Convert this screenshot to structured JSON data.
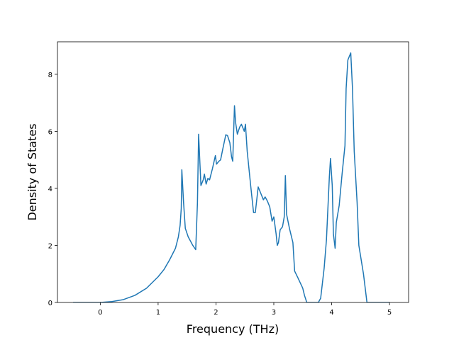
{
  "chart_data": {
    "type": "line",
    "x_label": "Frequency (THz)",
    "y_label": "Density of States",
    "xlim": [
      -0.74,
      5.33
    ],
    "ylim": [
      0,
      9.14
    ],
    "xticks": [
      0,
      1,
      2,
      3,
      4,
      5
    ],
    "yticks": [
      0,
      2,
      4,
      6,
      8
    ],
    "series": [
      {
        "color": "#1f77b4",
        "x": [
          -0.47,
          0,
          0.2,
          0.4,
          0.6,
          0.8,
          1.0,
          1.1,
          1.2,
          1.3,
          1.35,
          1.38,
          1.4,
          1.41,
          1.44,
          1.47,
          1.52,
          1.6,
          1.65,
          1.68,
          1.7,
          1.74,
          1.78,
          1.8,
          1.83,
          1.86,
          1.89,
          1.94,
          1.99,
          2.01,
          2.05,
          2.08,
          2.12,
          2.17,
          2.2,
          2.24,
          2.27,
          2.29,
          2.32,
          2.34,
          2.37,
          2.41,
          2.44,
          2.47,
          2.49,
          2.51,
          2.54,
          2.6,
          2.65,
          2.68,
          2.73,
          2.77,
          2.82,
          2.85,
          2.89,
          2.93,
          2.97,
          3.0,
          3.04,
          3.06,
          3.08,
          3.11,
          3.15,
          3.18,
          3.2,
          3.22,
          3.27,
          3.33,
          3.36,
          3.42,
          3.5,
          3.53,
          3.57,
          3.77,
          3.81,
          3.87,
          3.91,
          3.96,
          3.98,
          4.01,
          4.03,
          4.06,
          4.08,
          4.13,
          4.18,
          4.23,
          4.25,
          4.28,
          4.33,
          4.36,
          4.39,
          4.44,
          4.47,
          4.55,
          4.61,
          5.0
        ],
        "values": [
          0,
          0,
          0.03,
          0.1,
          0.25,
          0.5,
          0.9,
          1.15,
          1.5,
          1.9,
          2.3,
          2.7,
          3.3,
          4.65,
          3.5,
          2.6,
          2.3,
          2.0,
          1.85,
          3.5,
          5.9,
          4.1,
          4.3,
          4.5,
          4.15,
          4.35,
          4.3,
          4.7,
          5.15,
          4.85,
          4.95,
          5.0,
          5.4,
          5.88,
          5.85,
          5.6,
          5.1,
          4.95,
          6.9,
          6.3,
          5.9,
          6.15,
          6.25,
          6.1,
          6.0,
          6.25,
          5.3,
          4.1,
          3.15,
          3.15,
          4.05,
          3.85,
          3.6,
          3.7,
          3.55,
          3.35,
          2.85,
          3.0,
          2.4,
          2.0,
          2.1,
          2.55,
          2.65,
          3.0,
          4.45,
          3.1,
          2.6,
          2.1,
          1.1,
          0.85,
          0.5,
          0.25,
          0,
          0,
          0.15,
          1.2,
          2.2,
          4.4,
          5.05,
          4.1,
          2.4,
          1.9,
          2.8,
          3.4,
          4.5,
          5.5,
          7.5,
          8.5,
          8.75,
          7.5,
          5.3,
          3.5,
          2.0,
          1.0,
          0,
          0
        ]
      }
    ]
  }
}
